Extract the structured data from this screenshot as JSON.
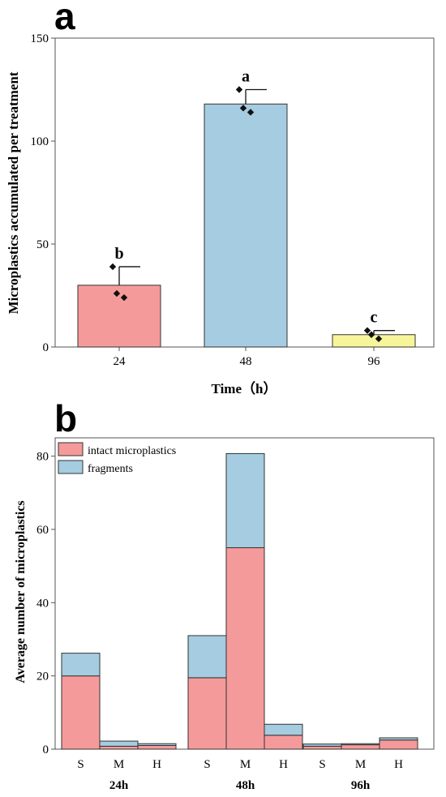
{
  "colors": {
    "pink": "#f59a9a",
    "blue": "#a5cce0",
    "yellow": "#f7f59a",
    "frame": "#555555",
    "stroke": "#333333"
  },
  "chart_data": [
    {
      "panel": "a",
      "type": "bar",
      "categories": [
        "24",
        "48",
        "96"
      ],
      "values": [
        30,
        118,
        6
      ],
      "errors": [
        9,
        7,
        2
      ],
      "points": [
        [
          39,
          26,
          24
        ],
        [
          125,
          116,
          114
        ],
        [
          8,
          6,
          4
        ]
      ],
      "significance": [
        "b",
        "a",
        "c"
      ],
      "bar_colors": [
        "#f59a9a",
        "#a5cce0",
        "#f7f59a"
      ],
      "xlabel": "Time（h）",
      "ylabel": "Microplastics accumulated per treatment",
      "ylim": [
        0,
        150
      ],
      "yticks": [
        0,
        50,
        100,
        150
      ]
    },
    {
      "panel": "b",
      "type": "bar",
      "stacked": true,
      "groups": [
        "24h",
        "48h",
        "96h"
      ],
      "subcategories": [
        "S",
        "M",
        "H"
      ],
      "series": [
        {
          "name": "intact microplastics",
          "color": "#f59a9a",
          "values": [
            20,
            0.8,
            1,
            19.5,
            55,
            3.8,
            0.8,
            1.2,
            2.5
          ]
        },
        {
          "name": "fragments",
          "color": "#a5cce0",
          "values": [
            6.2,
            1.4,
            0.5,
            11.5,
            25.7,
            3,
            0.6,
            0.3,
            0.6
          ]
        }
      ],
      "ylabel": "Average number of microplastics",
      "ylim": [
        0,
        85
      ],
      "yticks": [
        0,
        20,
        40,
        60,
        80
      ],
      "legend": "top-left"
    }
  ]
}
